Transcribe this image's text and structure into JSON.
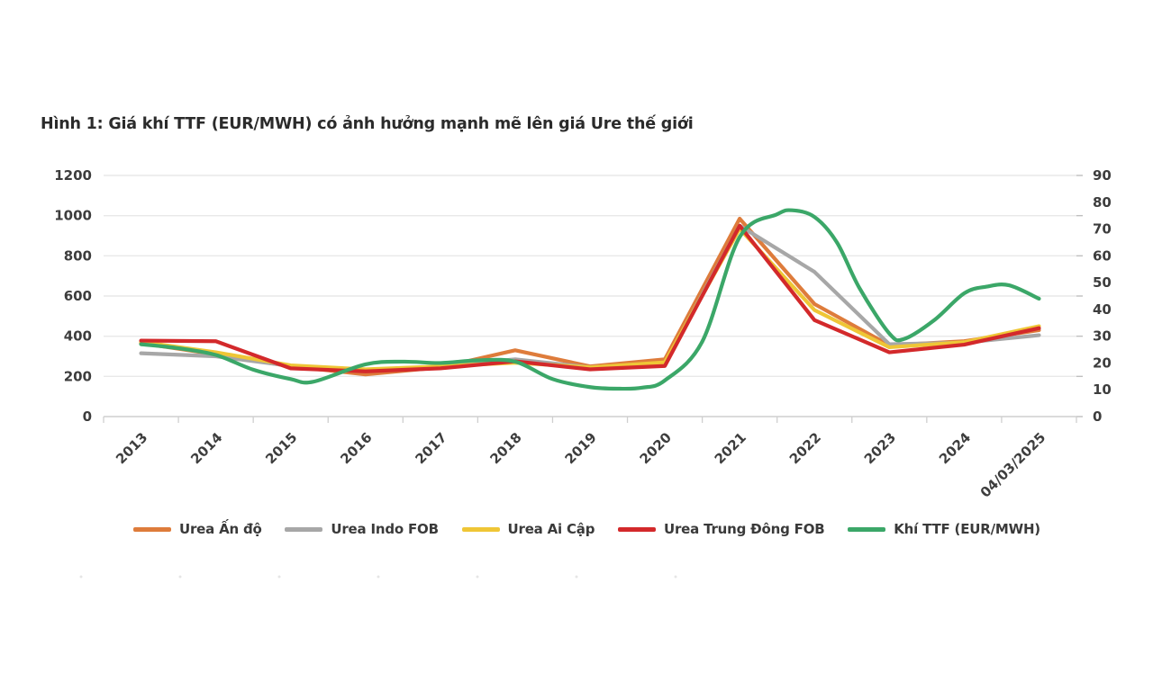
{
  "page": {
    "title": "Hình 1: Giá khí TTF (EUR/MWH) có ảnh hưởng mạnh mẽ lên giá Ure thế giới"
  },
  "chart_data": {
    "type": "line",
    "title": "Hình 1: Giá khí TTF (EUR/MWH) có ảnh hưởng mạnh mẽ lên giá Ure thế giới",
    "x_labels": [
      "2013",
      "2014",
      "2015",
      "2016",
      "2017",
      "2018",
      "2019",
      "2020",
      "2021",
      "2022",
      "2023",
      "2024",
      "04/03/2025"
    ],
    "left_axis": {
      "min": 0,
      "max": 1200,
      "step": 200,
      "tick_labels": [
        "0",
        "200",
        "400",
        "600",
        "800",
        "1000",
        "1200"
      ]
    },
    "right_axis": {
      "min": 0,
      "max": 90,
      "step": 10,
      "tick_labels": [
        "0",
        "10",
        "20",
        "30",
        "40",
        "50",
        "60",
        "70",
        "80",
        "90"
      ]
    },
    "grid": true,
    "legend_position": "bottom",
    "colors": {
      "urea_india": "#DE7C3B",
      "urea_indo": "#A7A7A7",
      "urea_egypt": "#EFC636",
      "urea_middle_east": "#D3292B",
      "ttf_gas": "#3BA768"
    },
    "series": [
      {
        "id": "urea-india",
        "name": "Urea Ấn độ",
        "color": "#DE7C3B",
        "axis": "left",
        "smooth": false,
        "points": [
          [
            0,
            365
          ],
          [
            1,
            310
          ],
          [
            2,
            250
          ],
          [
            3,
            210
          ],
          [
            4,
            245
          ],
          [
            5,
            330
          ],
          [
            6,
            250
          ],
          [
            7,
            285
          ],
          [
            8,
            985
          ],
          [
            9,
            560
          ],
          [
            10,
            355
          ],
          [
            11,
            375
          ],
          [
            12,
            430
          ]
        ]
      },
      {
        "id": "urea-indo-fob",
        "name": "Urea Indo FOB",
        "color": "#A7A7A7",
        "axis": "left",
        "smooth": false,
        "points": [
          [
            0,
            315
          ],
          [
            1,
            300
          ],
          [
            2,
            252
          ],
          [
            3,
            230
          ],
          [
            4,
            250
          ],
          [
            5,
            285
          ],
          [
            6,
            245
          ],
          [
            7,
            265
          ],
          [
            8,
            950
          ],
          [
            9,
            720
          ],
          [
            10,
            360
          ],
          [
            11,
            368
          ],
          [
            12,
            405
          ]
        ]
      },
      {
        "id": "urea-egypt",
        "name": "Urea Ai Cập",
        "color": "#EFC636",
        "axis": "left",
        "smooth": false,
        "points": [
          [
            0,
            372
          ],
          [
            1,
            320
          ],
          [
            2,
            255
          ],
          [
            3,
            235
          ],
          [
            4,
            250
          ],
          [
            5,
            268
          ],
          [
            6,
            245
          ],
          [
            7,
            270
          ],
          [
            8,
            935
          ],
          [
            9,
            530
          ],
          [
            10,
            345
          ],
          [
            11,
            370
          ],
          [
            12,
            450
          ]
        ]
      },
      {
        "id": "urea-middle-east-fob",
        "name": "Urea Trung Đông FOB",
        "color": "#D3292B",
        "axis": "left",
        "smooth": false,
        "points": [
          [
            0,
            378
          ],
          [
            1,
            375
          ],
          [
            2,
            240
          ],
          [
            3,
            225
          ],
          [
            4,
            240
          ],
          [
            5,
            275
          ],
          [
            6,
            235
          ],
          [
            7,
            252
          ],
          [
            8,
            950
          ],
          [
            9,
            480
          ],
          [
            10,
            320
          ],
          [
            11,
            358
          ],
          [
            12,
            440
          ]
        ]
      },
      {
        "id": "ttf-gas",
        "name": "Khí TTF (EUR/MWH)",
        "color": "#3BA768",
        "axis": "right",
        "smooth": true,
        "points": [
          [
            0,
            27
          ],
          [
            0.5,
            25.5
          ],
          [
            1,
            23
          ],
          [
            1.5,
            17.5
          ],
          [
            2,
            14
          ],
          [
            2.3,
            13
          ],
          [
            3,
            19.5
          ],
          [
            3.5,
            20.5
          ],
          [
            4,
            20
          ],
          [
            4.5,
            21
          ],
          [
            5,
            20.5
          ],
          [
            5.5,
            14
          ],
          [
            6,
            11
          ],
          [
            6.4,
            10.4
          ],
          [
            6.7,
            10.8
          ],
          [
            7,
            13.5
          ],
          [
            7.5,
            28
          ],
          [
            8,
            67
          ],
          [
            8.5,
            75.5
          ],
          [
            8.7,
            77
          ],
          [
            9,
            74.5
          ],
          [
            9.3,
            65
          ],
          [
            9.6,
            48
          ],
          [
            10,
            31
          ],
          [
            10.2,
            29
          ],
          [
            10.6,
            36
          ],
          [
            11,
            46
          ],
          [
            11.3,
            48.5
          ],
          [
            11.6,
            49
          ],
          [
            12,
            44
          ]
        ]
      }
    ]
  }
}
